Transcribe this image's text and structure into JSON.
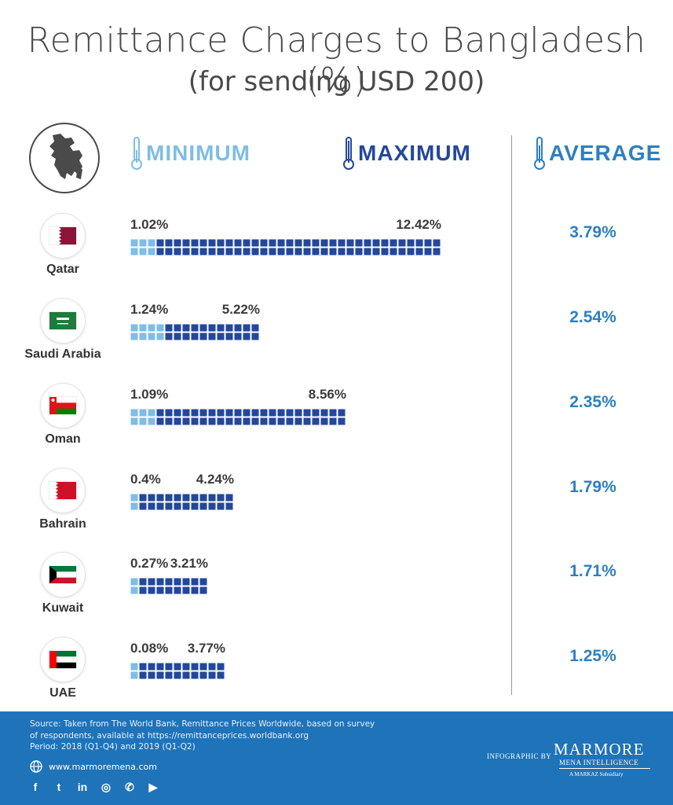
{
  "title": "Remittance Charges to Bangladesh (%)",
  "subtitle": "(for sending USD 200)",
  "legend": {
    "minimum": "MINIMUM",
    "maximum": "MAXIMUM",
    "average": "AVERAGE"
  },
  "colors": {
    "minimum": "#7fbde6",
    "maximum": "#23479b",
    "average": "#2e7fc1",
    "footer": "#1e73b9"
  },
  "chart_data": {
    "type": "bar",
    "title": "Remittance Charges to Bangladesh (%)",
    "subtitle": "(for sending USD 200)",
    "categories": [
      "Qatar",
      "Saudi Arabia",
      "Oman",
      "Bahrain",
      "Kuwait",
      "UAE"
    ],
    "series": [
      {
        "name": "MINIMUM",
        "values": [
          1.02,
          1.24,
          1.09,
          0.4,
          0.27,
          0.08
        ]
      },
      {
        "name": "MAXIMUM",
        "values": [
          12.42,
          5.22,
          8.56,
          4.24,
          3.21,
          3.77
        ]
      },
      {
        "name": "AVERAGE",
        "values": [
          3.79,
          2.54,
          2.35,
          1.79,
          1.71,
          1.25
        ]
      }
    ],
    "min_labels": [
      "1.02%",
      "1.24%",
      "1.09%",
      "0.4%",
      "0.27%",
      "0.08%"
    ],
    "max_labels": [
      "12.42%",
      "5.22%",
      "8.56%",
      "4.24%",
      "3.21%",
      "3.77%"
    ],
    "avg_labels": [
      "3.79%",
      "2.54%",
      "2.35%",
      "1.79%",
      "1.71%",
      "1.25%"
    ],
    "flag_icons": [
      "qatar-flag-icon",
      "saudi-arabia-flag-icon",
      "oman-flag-icon",
      "bahrain-flag-icon",
      "kuwait-flag-icon",
      "uae-flag-icon"
    ]
  },
  "footer": {
    "source_line1": "Source: Taken from The World Bank, Remittance Prices Worldwide, based on survey",
    "source_line2": "of respondents, available at  https://remittanceprices.worldbank.org",
    "period": "Period: 2018 (Q1-Q4) and 2019 (Q1-Q2)",
    "website": "www.marmoremena.com",
    "socials": [
      "facebook-icon",
      "twitter-icon",
      "linkedin-icon",
      "instagram-icon",
      "whatsapp-icon",
      "youtube-icon"
    ],
    "social_glyphs": [
      "f",
      "t",
      "in",
      "◎",
      "✆",
      "▶"
    ],
    "credit": "INFOGRAPHIC BY",
    "brand": "MARMORE",
    "brand_sub": "MENA INTELLIGENCE",
    "brand_note": "A  MARKAZ  Subsidiary"
  }
}
